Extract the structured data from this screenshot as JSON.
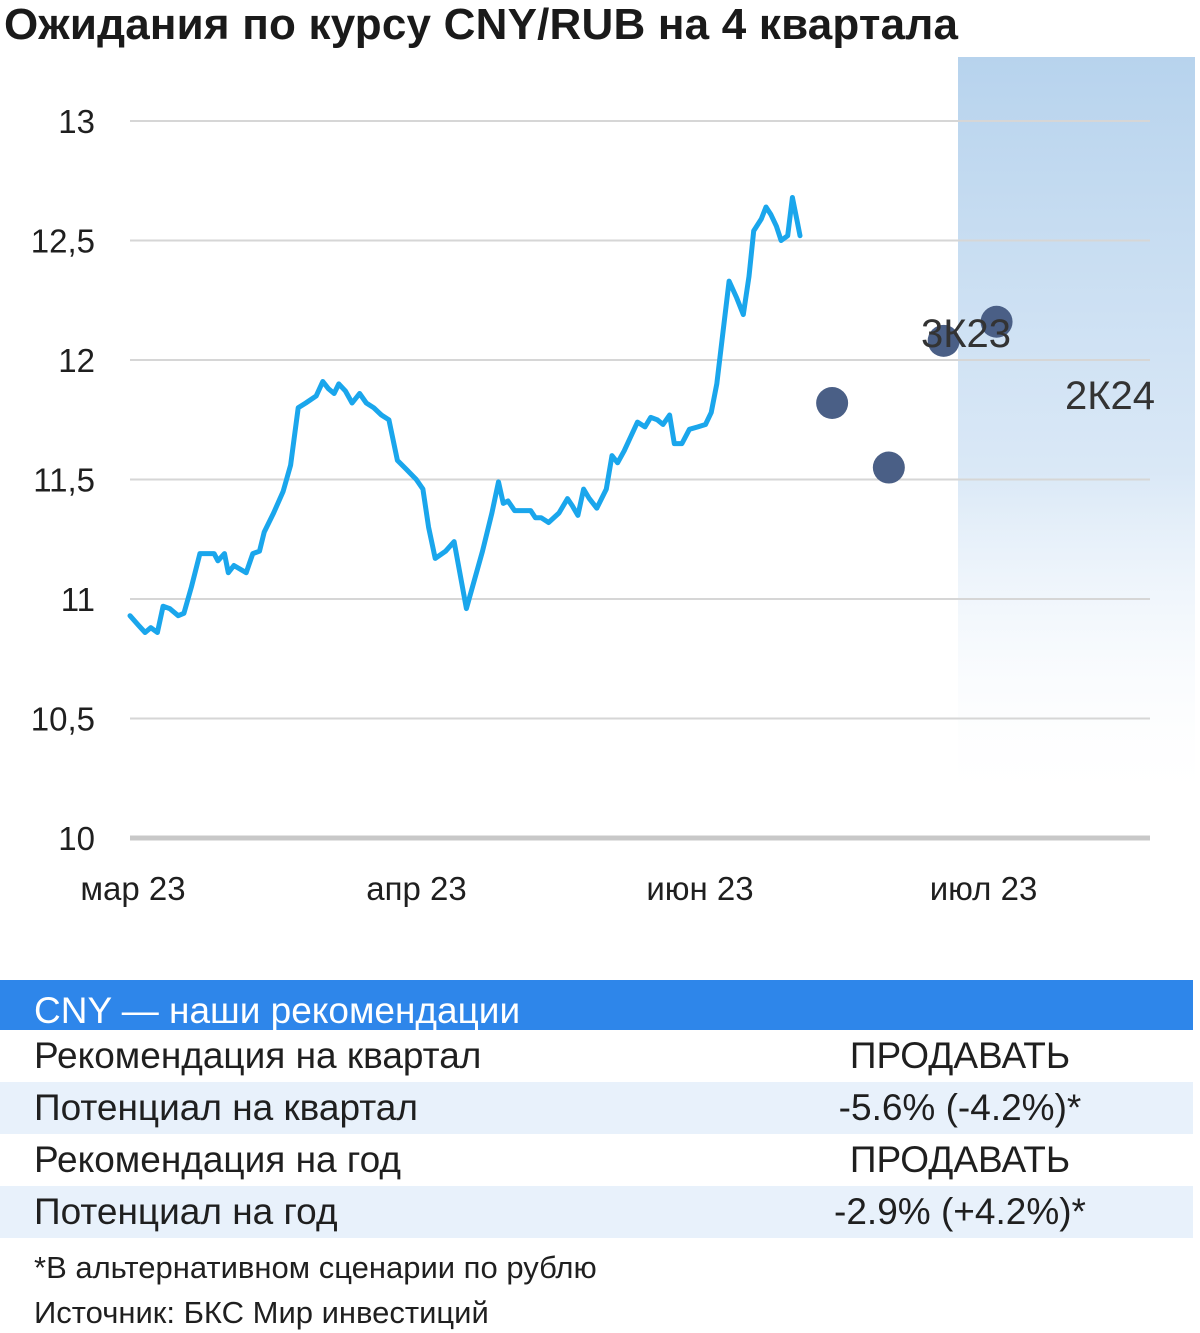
{
  "title": "Ожидания по курсу CNY/RUB на 4 квартала",
  "colors": {
    "line": "#1aa6ec",
    "dots": "#4a5f86",
    "band_top": "#b7d3ed",
    "header": "#2e86ea",
    "grid": "#d6d6d6"
  },
  "chart_data": {
    "type": "line",
    "title": "Ожидания по курсу CNY/RUB на 4 квартала",
    "xlabel": "",
    "ylabel": "",
    "ylim": [
      10,
      13
    ],
    "yticks": [
      "13",
      "12,5",
      "12",
      "11,5",
      "11",
      "10,5",
      "10"
    ],
    "ytick_values": [
      13,
      12.5,
      12,
      11.5,
      11,
      10.5,
      10
    ],
    "xticks": [
      "мар 23",
      "апр 23",
      "июн 23",
      "июл 23"
    ],
    "xtick_days": [
      0,
      30,
      60,
      90
    ],
    "grid": true,
    "series": [
      {
        "values": [
          [
            0,
            10.93
          ],
          [
            0.9,
            10.89
          ],
          [
            1.6,
            10.86
          ],
          [
            2.2,
            10.88
          ],
          [
            2.9,
            10.86
          ],
          [
            3.5,
            10.97
          ],
          [
            4.2,
            10.96
          ],
          [
            5.1,
            10.93
          ],
          [
            5.7,
            10.94
          ],
          [
            6.5,
            11.05
          ],
          [
            7.4,
            11.19
          ],
          [
            8.1,
            11.19
          ],
          [
            8.9,
            11.19
          ],
          [
            9.3,
            11.16
          ],
          [
            10,
            11.19
          ],
          [
            10.4,
            11.11
          ],
          [
            11,
            11.14
          ],
          [
            12.3,
            11.11
          ],
          [
            13,
            11.19
          ],
          [
            13.7,
            11.2
          ],
          [
            14.2,
            11.28
          ],
          [
            15.2,
            11.36
          ],
          [
            16.2,
            11.45
          ],
          [
            17,
            11.56
          ],
          [
            17.8,
            11.8
          ],
          [
            18.6,
            11.82
          ],
          [
            19.7,
            11.85
          ],
          [
            20.4,
            11.91
          ],
          [
            21,
            11.88
          ],
          [
            21.6,
            11.86
          ],
          [
            22.1,
            11.9
          ],
          [
            22.8,
            11.87
          ],
          [
            23.5,
            11.82
          ],
          [
            24.3,
            11.86
          ],
          [
            25,
            11.82
          ],
          [
            25.8,
            11.8
          ],
          [
            26.6,
            11.77
          ],
          [
            27.4,
            11.75
          ],
          [
            28.3,
            11.58
          ],
          [
            29.3,
            11.54
          ],
          [
            30.3,
            11.5
          ],
          [
            31,
            11.46
          ],
          [
            31.6,
            11.3
          ],
          [
            32.3,
            11.17
          ],
          [
            33.4,
            11.2
          ],
          [
            34.3,
            11.24
          ],
          [
            35.6,
            10.96
          ],
          [
            37.3,
            11.2
          ],
          [
            38.3,
            11.36
          ],
          [
            39,
            11.49
          ],
          [
            39.5,
            11.4
          ],
          [
            40,
            11.41
          ],
          [
            40.7,
            11.37
          ],
          [
            41.4,
            11.37
          ],
          [
            42.4,
            11.37
          ],
          [
            42.9,
            11.34
          ],
          [
            43.5,
            11.34
          ],
          [
            44.3,
            11.32
          ],
          [
            45.4,
            11.36
          ],
          [
            46.3,
            11.42
          ],
          [
            46.8,
            11.39
          ],
          [
            47.4,
            11.35
          ],
          [
            48,
            11.46
          ],
          [
            48.6,
            11.42
          ],
          [
            49.4,
            11.38
          ],
          [
            50.4,
            11.46
          ],
          [
            51,
            11.6
          ],
          [
            51.6,
            11.57
          ],
          [
            52.3,
            11.62
          ],
          [
            53,
            11.68
          ],
          [
            53.7,
            11.74
          ],
          [
            54.5,
            11.72
          ],
          [
            55.1,
            11.76
          ],
          [
            55.8,
            11.75
          ],
          [
            56.4,
            11.73
          ],
          [
            57.1,
            11.77
          ],
          [
            57.6,
            11.65
          ],
          [
            58.4,
            11.65
          ],
          [
            59.2,
            11.71
          ],
          [
            60.1,
            11.72
          ],
          [
            60.9,
            11.73
          ],
          [
            61.5,
            11.78
          ],
          [
            62.1,
            11.9
          ],
          [
            62.7,
            12.1
          ],
          [
            63.4,
            12.33
          ],
          [
            64.2,
            12.26
          ],
          [
            64.9,
            12.19
          ],
          [
            65.5,
            12.35
          ],
          [
            66,
            12.54
          ],
          [
            66.8,
            12.59
          ],
          [
            67.3,
            12.64
          ],
          [
            67.8,
            12.61
          ],
          [
            68.4,
            12.56
          ],
          [
            68.9,
            12.5
          ],
          [
            69.6,
            12.52
          ],
          [
            70.1,
            12.68
          ],
          [
            70.6,
            12.58
          ],
          [
            70.9,
            12.52
          ]
        ]
      }
    ],
    "forecast_points": [
      [
        74.3,
        11.82
      ],
      [
        80.3,
        11.55
      ],
      [
        86.1,
        12.08
      ],
      [
        91.7,
        12.16
      ]
    ],
    "annotations": [
      "3К23",
      "2К24"
    ]
  },
  "table": {
    "header": "CNY — наши рекомендации",
    "rows": [
      {
        "label": "Рекомендация на квартал",
        "value": "ПРОДАВАТЬ"
      },
      {
        "label": "Потенциал на квартал",
        "value": "-5.6% (-4.2%)*"
      },
      {
        "label": "Рекомендация на год",
        "value": "ПРОДАВАТЬ"
      },
      {
        "label": "Потенциал на год",
        "value": "-2.9% (+4.2%)*"
      }
    ]
  },
  "footnote": "*В альтернативном сценарии по рублю",
  "source": "Источник: БКС Мир инвестиций"
}
